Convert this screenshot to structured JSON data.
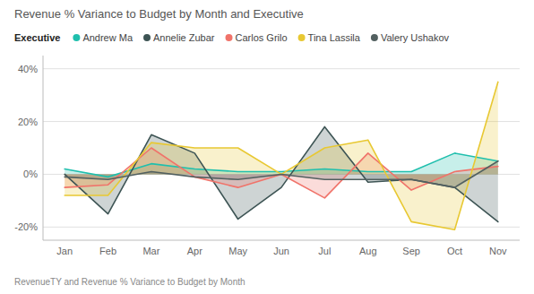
{
  "chart_data": {
    "type": "area",
    "title": "Revenue % Variance to Budget by Month and Executive",
    "subtitle": "RevenueTY and Revenue % Variance to Budget by Month",
    "legend_title": "Executive",
    "categories": [
      "Jan",
      "Feb",
      "Mar",
      "Apr",
      "May",
      "Jun",
      "Jul",
      "Aug",
      "Sep",
      "Oct",
      "Nov"
    ],
    "series": [
      {
        "name": "Andrew Ma",
        "color": "#1fbfad",
        "values": [
          2,
          -1,
          4,
          2,
          1,
          1,
          2,
          1,
          1,
          8,
          5
        ]
      },
      {
        "name": "Annelie Zubar",
        "color": "#3d5454",
        "values": [
          0,
          -15,
          15,
          8,
          -17,
          -5,
          18,
          -3,
          -2,
          -5,
          -18
        ]
      },
      {
        "name": "Carlos Grilo",
        "color": "#f0736a",
        "values": [
          -5,
          -4,
          10,
          -1,
          -5,
          0,
          -9,
          8,
          -6,
          1,
          3
        ]
      },
      {
        "name": "Tina Lassila",
        "color": "#e8c832",
        "values": [
          -8,
          -8,
          12,
          10,
          10,
          0,
          10,
          13,
          -18,
          -21,
          35
        ]
      },
      {
        "name": "Valery Ushakov",
        "color": "#526060",
        "values": [
          -1,
          -2,
          1,
          -1,
          -2,
          0,
          -2,
          -2,
          -2,
          -5,
          5
        ]
      }
    ],
    "ylim": [
      -25,
      45
    ],
    "yticks": [
      {
        "value": -20,
        "label": "-20%"
      },
      {
        "value": 0,
        "label": "0%"
      },
      {
        "value": 20,
        "label": "20%"
      },
      {
        "value": 40,
        "label": "40%"
      }
    ],
    "grid": true,
    "stacked": false
  }
}
